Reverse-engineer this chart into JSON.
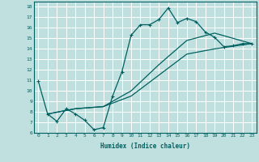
{
  "xlabel": "Humidex (Indice chaleur)",
  "bg_color": "#c0e0e0",
  "grid_color": "#ffffff",
  "line_color": "#006060",
  "xlim": [
    -0.5,
    23.5
  ],
  "ylim": [
    6,
    18.5
  ],
  "xticks": [
    0,
    1,
    2,
    3,
    4,
    5,
    6,
    7,
    8,
    9,
    10,
    11,
    12,
    13,
    14,
    15,
    16,
    17,
    18,
    19,
    20,
    21,
    22,
    23
  ],
  "yticks": [
    6,
    7,
    8,
    9,
    10,
    11,
    12,
    13,
    14,
    15,
    16,
    17,
    18
  ],
  "line1_x": [
    0,
    1,
    2,
    3,
    4,
    5,
    6,
    7,
    8,
    9,
    10,
    11,
    12,
    13,
    14,
    15,
    16,
    17,
    18,
    19,
    20,
    21,
    22,
    23
  ],
  "line1_y": [
    10.9,
    7.8,
    7.1,
    8.3,
    7.8,
    7.2,
    6.3,
    6.5,
    9.5,
    11.8,
    15.3,
    16.3,
    16.3,
    16.8,
    17.9,
    16.5,
    16.9,
    16.6,
    15.6,
    15.1,
    14.2,
    14.3,
    14.5,
    14.5
  ],
  "line2_x": [
    1,
    4,
    7,
    10,
    13,
    16,
    19,
    23
  ],
  "line2_y": [
    7.8,
    8.3,
    8.5,
    10.0,
    12.5,
    14.8,
    15.5,
    14.5
  ],
  "line3_x": [
    1,
    4,
    7,
    10,
    13,
    16,
    19,
    23
  ],
  "line3_y": [
    7.8,
    8.3,
    8.5,
    9.5,
    11.5,
    13.5,
    14.0,
    14.5
  ]
}
